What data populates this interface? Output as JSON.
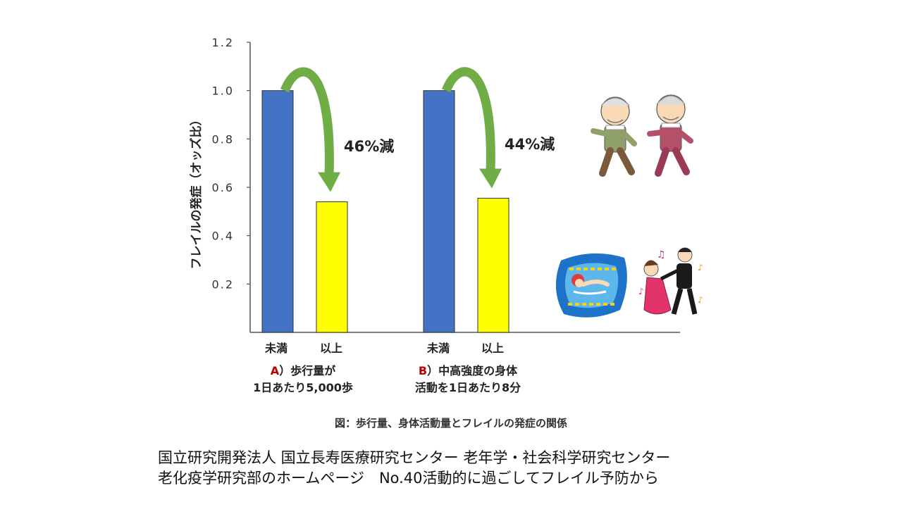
{
  "chart_data": {
    "type": "bar",
    "ylabel": "フレイルの発症（オッズ比）",
    "ylim": [
      0,
      1.2
    ],
    "yticks": [
      "1.2",
      "1.0",
      "0.8",
      "0.6",
      "0.4",
      "0.2"
    ],
    "groups": [
      {
        "marker": "A",
        "title_rest": "）歩行量が",
        "title_line2": "1日あたり5,000歩",
        "categories": [
          "未満",
          "以上"
        ],
        "values": [
          1.0,
          0.54
        ],
        "colors": [
          "#4472C4",
          "#FFFF00"
        ],
        "annotation": "46%減"
      },
      {
        "marker": "B",
        "title_rest": "）中高強度の身体",
        "title_line2": "活動を1日あたり8分",
        "categories": [
          "未満",
          "以上"
        ],
        "values": [
          1.0,
          0.555
        ],
        "colors": [
          "#4472C4",
          "#FFFF00"
        ],
        "annotation": "44%減"
      }
    ],
    "arrow_color": "#70AD47",
    "marker_color": "#C00000"
  },
  "figure_caption": "図：歩行量、身体活動量とフレイルの発症の関係",
  "source_lines": [
    "国立研究開発法人 国立長寿医療研究センター 老年学・社会科学研究センター",
    "老化疫学研究部のホームページ　No.40活動的に過ごしてフレイル予防から"
  ],
  "illustrations": [
    "walking-elderly-couple-illustration",
    "swimmer-illustration",
    "dancing-couple-illustration"
  ]
}
